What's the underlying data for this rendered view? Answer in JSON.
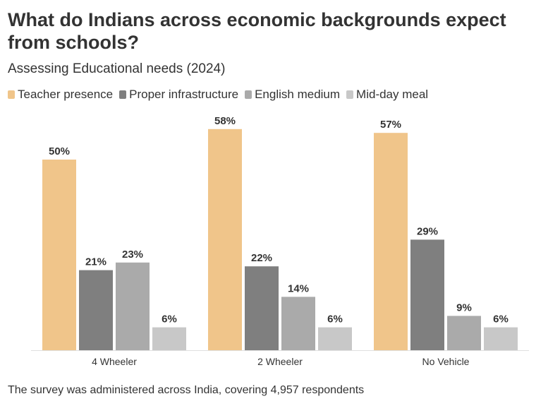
{
  "header": {
    "title": "What do Indians across economic backgrounds expect from schools?",
    "subtitle": "Assessing Educational needs (2024)"
  },
  "footer": {
    "note": "The survey was administered across India, covering 4,957 respondents"
  },
  "chart_data": {
    "type": "bar",
    "title": "What do Indians across economic backgrounds expect from schools?",
    "subtitle": "Assessing Educational needs (2024)",
    "categories": [
      "4 Wheeler",
      "2 Wheeler",
      "No Vehicle"
    ],
    "series": [
      {
        "name": "Teacher presence",
        "color": "#F0C58A",
        "values": [
          50,
          58,
          57
        ]
      },
      {
        "name": "Proper infrastructure",
        "color": "#7F7F7F",
        "values": [
          21,
          22,
          29
        ]
      },
      {
        "name": "English medium",
        "color": "#AAAAAA",
        "values": [
          23,
          14,
          9
        ]
      },
      {
        "name": "Mid-day meal",
        "color": "#C8C8C8",
        "values": [
          6,
          6,
          6
        ]
      }
    ],
    "value_suffix": "%",
    "xlabel": "",
    "ylabel": "",
    "ylim": [
      0,
      60
    ],
    "grid": false,
    "legend_position": "top-left",
    "data_labels": true
  }
}
